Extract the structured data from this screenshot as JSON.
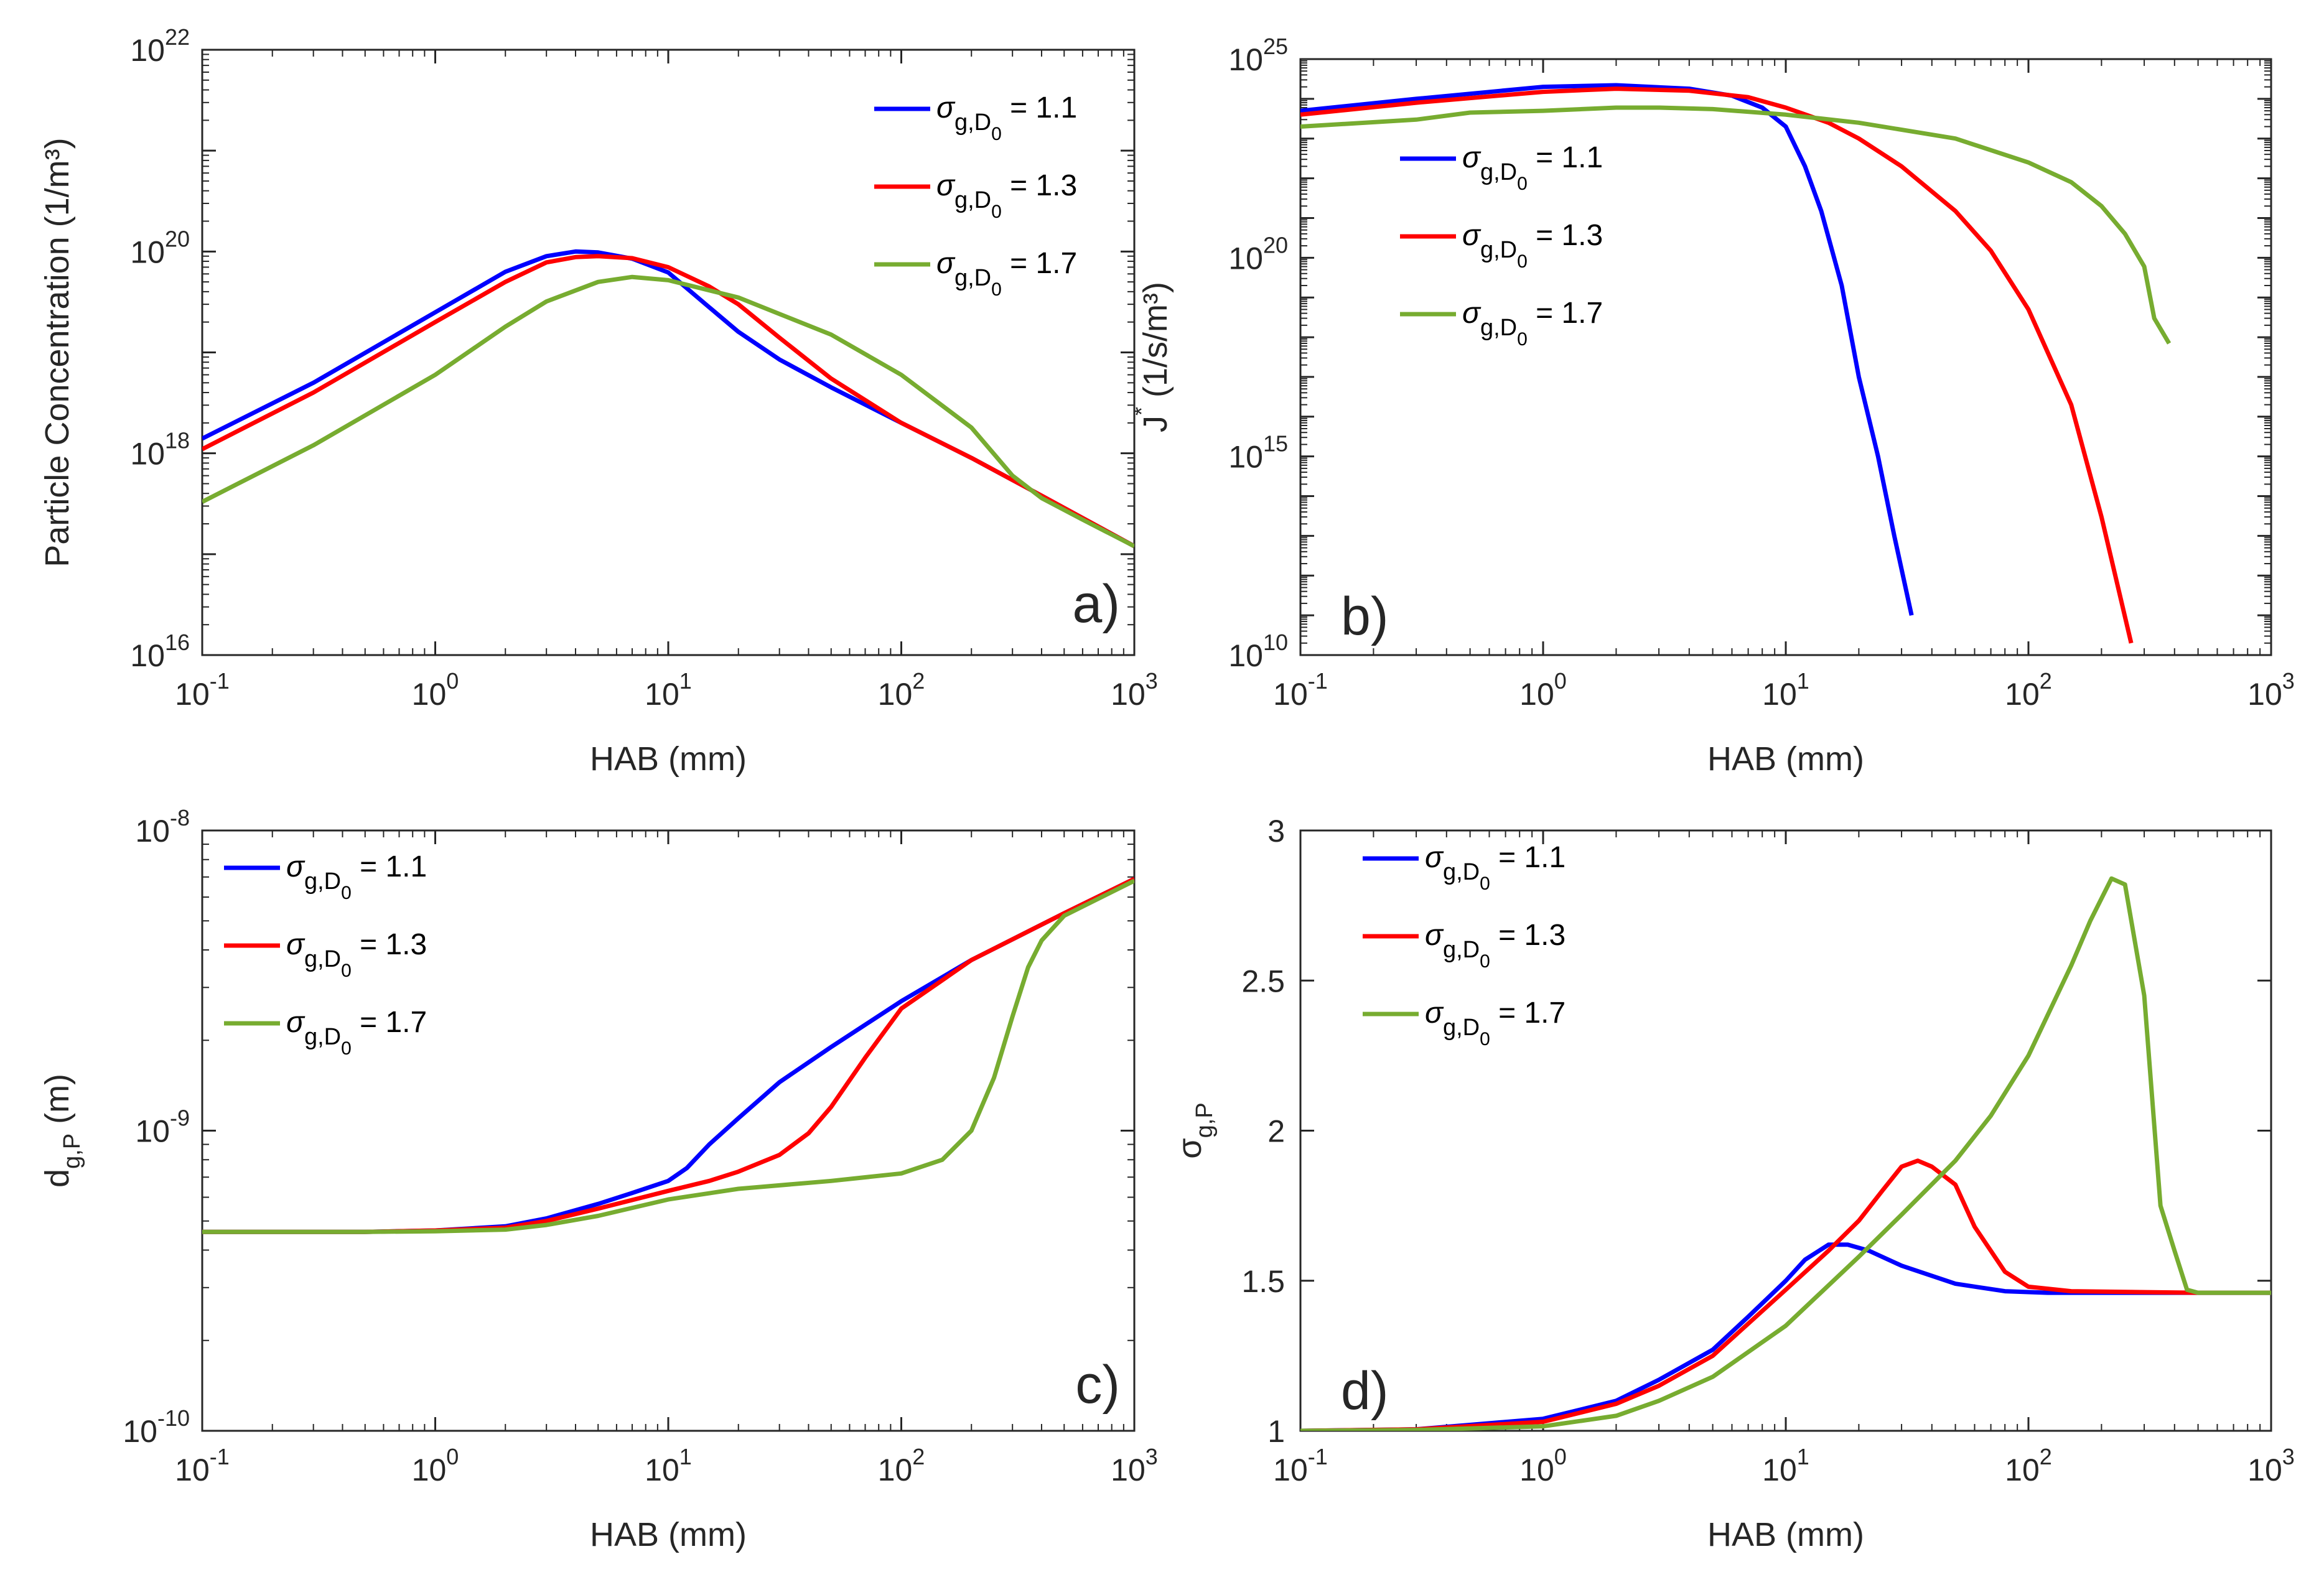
{
  "chart_data": [
    {
      "panel": "a)",
      "type": "line",
      "xscale": "log",
      "yscale": "log",
      "xlim": [
        0.1,
        1000
      ],
      "ylim": [
        1e+16,
        1e+22
      ],
      "xlabel": "HAB (mm)",
      "ylabel": "Particle Concentration (1/m³)",
      "xticks": [
        {
          "b": "10",
          "e": "-1"
        },
        {
          "b": "10",
          "e": "0"
        },
        {
          "b": "10",
          "e": "1"
        },
        {
          "b": "10",
          "e": "2"
        },
        {
          "b": "10",
          "e": "3"
        }
      ],
      "yticks": [
        {
          "v": 16,
          "b": "10",
          "e": "16"
        },
        {
          "v": 18,
          "b": "10",
          "e": "18"
        },
        {
          "v": 20,
          "b": "10",
          "e": "20"
        },
        {
          "v": 22,
          "b": "10",
          "e": "22"
        }
      ],
      "legend_position": "top-right",
      "series": [
        {
          "name": "σg,D0 = 1.1",
          "color": "#0000ff",
          "x": [
            0.1,
            0.3,
            1,
            2,
            3,
            4,
            5,
            7,
            10,
            15,
            20,
            30,
            50,
            100,
            200,
            400,
            1000
          ],
          "y": [
            1.4e+18,
            5e+18,
            2.5e+19,
            6.3e+19,
            9e+19,
            1e+20,
            9.8e+19,
            8.5e+19,
            6.2e+19,
            2.8e+19,
            1.6e+19,
            8.5e+18,
            4.5e+18,
            2e+18,
            9e+17,
            3.8e+17,
            1.2e+17
          ]
        },
        {
          "name": "σg,D0 = 1.3",
          "color": "#ff0000",
          "x": [
            0.1,
            0.3,
            1,
            2,
            3,
            4,
            5,
            7,
            10,
            15,
            20,
            30,
            50,
            100,
            200,
            400,
            1000
          ],
          "y": [
            1.1e+18,
            4e+18,
            2e+19,
            5e+19,
            7.8e+19,
            8.8e+19,
            9e+19,
            8.6e+19,
            7e+19,
            4.5e+19,
            3e+19,
            1.4e+19,
            5.5e+18,
            2e+18,
            9e+17,
            3.8e+17,
            1.2e+17
          ]
        },
        {
          "name": "σg,D0 = 1.7",
          "color": "#77ac30",
          "x": [
            0.1,
            0.3,
            1,
            2,
            3,
            5,
            7,
            10,
            20,
            50,
            100,
            200,
            300,
            400,
            600,
            1000
          ],
          "y": [
            3.3e+17,
            1.2e+18,
            6e+18,
            1.8e+19,
            3.2e+19,
            5e+19,
            5.6e+19,
            5.2e+19,
            3.5e+19,
            1.5e+19,
            6e+18,
            1.8e+18,
            6e+17,
            3.6e+17,
            2.2e+17,
            1.2e+17
          ]
        }
      ],
      "legend": [
        "= 1.1",
        "= 1.3",
        "= 1.7"
      ]
    },
    {
      "panel": "b)",
      "type": "line",
      "xscale": "log",
      "yscale": "log",
      "xlim": [
        0.1,
        1000
      ],
      "ylim": [
        10000000000.0,
        1e+25
      ],
      "xlabel": "HAB (mm)",
      "ylabel": "J* (1/s/m³)",
      "ylabel_parts": {
        "main": "J",
        "sup": "*",
        "rest": " (1/s/m³)"
      },
      "xticks": [
        {
          "b": "10",
          "e": "-1"
        },
        {
          "b": "10",
          "e": "0"
        },
        {
          "b": "10",
          "e": "1"
        },
        {
          "b": "10",
          "e": "2"
        },
        {
          "b": "10",
          "e": "3"
        }
      ],
      "yticks": [
        {
          "v": 10,
          "b": "10",
          "e": "10"
        },
        {
          "v": 15,
          "b": "10",
          "e": "15"
        },
        {
          "v": 20,
          "b": "10",
          "e": "20"
        },
        {
          "v": 25,
          "b": "10",
          "e": "25"
        }
      ],
      "legend_position": "top-left",
      "series": [
        {
          "name": "σg,D0 = 1.1",
          "color": "#0000ff",
          "x": [
            0.1,
            0.3,
            1,
            2,
            4,
            6,
            8,
            10,
            12,
            14,
            17,
            20,
            24,
            28,
            33
          ],
          "y": [
            5e+23,
            1e+24,
            2e+24,
            2.2e+24,
            1.8e+24,
            1.2e+24,
            6e+23,
            2e+23,
            2e+22,
            1.5e+21,
            2e+19,
            1e+17,
            1000000000000000.0,
            10000000000000.0,
            100000000000.0
          ]
        },
        {
          "name": "σg,D0 = 1.3",
          "color": "#ff0000",
          "x": [
            0.1,
            0.3,
            1,
            2,
            4,
            7,
            10,
            15,
            20,
            30,
            50,
            70,
            100,
            150,
            200,
            265
          ],
          "y": [
            4e+23,
            8e+23,
            1.5e+24,
            1.8e+24,
            1.6e+24,
            1.1e+24,
            6e+23,
            2.5e+23,
            1e+23,
            2e+22,
            1.5e+21,
            1.5e+20,
            5e+18,
            2e+16,
            30000000000000.0,
            20000000000.0
          ]
        },
        {
          "name": "σg,D0 = 1.7",
          "color": "#77ac30",
          "x": [
            0.1,
            0.3,
            0.5,
            1,
            2,
            3,
            5,
            10,
            20,
            50,
            100,
            150,
            200,
            250,
            300,
            330,
            380
          ],
          "y": [
            2e+23,
            3e+23,
            4.5e+23,
            5e+23,
            6e+23,
            6e+23,
            5.5e+23,
            4e+23,
            2.5e+23,
            1e+23,
            2.5e+22,
            8e+21,
            2e+21,
            4e+20,
            6e+19,
            3e+18,
            7e+17
          ]
        }
      ],
      "legend": [
        "= 1.1",
        "= 1.3",
        "= 1.7"
      ]
    },
    {
      "panel": "c)",
      "type": "line",
      "xscale": "log",
      "yscale": "log",
      "xlim": [
        0.1,
        1000
      ],
      "ylim": [
        1e-10,
        1e-08
      ],
      "xlabel": "HAB (mm)",
      "ylabel": "dg,P (m)",
      "ylabel_parts": {
        "main": "d",
        "sub": "g,P",
        "rest": " (m)"
      },
      "xticks": [
        {
          "b": "10",
          "e": "-1"
        },
        {
          "b": "10",
          "e": "0"
        },
        {
          "b": "10",
          "e": "1"
        },
        {
          "b": "10",
          "e": "2"
        },
        {
          "b": "10",
          "e": "3"
        }
      ],
      "yticks": [
        {
          "v": -10,
          "b": "10",
          "e": "-10"
        },
        {
          "v": -9,
          "b": "10",
          "e": "-9"
        },
        {
          "v": -8,
          "b": "10",
          "e": "-8"
        }
      ],
      "legend_position": "top-left",
      "series": [
        {
          "name": "σg,D0 = 1.1",
          "color": "#0000ff",
          "x": [
            0.1,
            0.5,
            1,
            2,
            3,
            5,
            7,
            10,
            12,
            15,
            20,
            30,
            50,
            100,
            200,
            500,
            1000
          ],
          "y": [
            4.6e-10,
            4.6e-10,
            4.65e-10,
            4.8e-10,
            5.1e-10,
            5.7e-10,
            6.2e-10,
            6.8e-10,
            7.5e-10,
            9e-10,
            1.1e-09,
            1.45e-09,
            1.9e-09,
            2.7e-09,
            3.7e-09,
            5.3e-09,
            6.9e-09
          ]
        },
        {
          "name": "σg,D0 = 1.3",
          "color": "#ff0000",
          "x": [
            0.1,
            0.5,
            1,
            2,
            3,
            5,
            10,
            15,
            20,
            30,
            40,
            50,
            70,
            100,
            200,
            500,
            1000
          ],
          "y": [
            4.6e-10,
            4.6e-10,
            4.65e-10,
            4.75e-10,
            5e-10,
            5.5e-10,
            6.3e-10,
            6.8e-10,
            7.3e-10,
            8.3e-10,
            9.8e-10,
            1.2e-09,
            1.75e-09,
            2.55e-09,
            3.7e-09,
            5.3e-09,
            6.9e-09
          ]
        },
        {
          "name": "σg,D0 = 1.7",
          "color": "#77ac30",
          "x": [
            0.1,
            0.5,
            1,
            2,
            3,
            5,
            10,
            20,
            50,
            100,
            150,
            200,
            250,
            300,
            350,
            400,
            500,
            1000
          ],
          "y": [
            4.6e-10,
            4.6e-10,
            4.62e-10,
            4.68e-10,
            4.85e-10,
            5.2e-10,
            5.9e-10,
            6.4e-10,
            6.8e-10,
            7.2e-10,
            8e-10,
            1e-09,
            1.5e-09,
            2.4e-09,
            3.5e-09,
            4.3e-09,
            5.2e-09,
            6.8e-09
          ]
        }
      ],
      "legend": [
        "= 1.1",
        "= 1.3",
        "= 1.7"
      ]
    },
    {
      "panel": "d)",
      "type": "line",
      "xscale": "log",
      "yscale": "linear",
      "xlim": [
        0.1,
        1000
      ],
      "ylim": [
        1,
        3
      ],
      "xlabel": "HAB (mm)",
      "ylabel": "σg,P",
      "ylabel_parts": {
        "main": "σ",
        "sub": "g,P",
        "rest": ""
      },
      "xticks": [
        {
          "b": "10",
          "e": "-1"
        },
        {
          "b": "10",
          "e": "0"
        },
        {
          "b": "10",
          "e": "1"
        },
        {
          "b": "10",
          "e": "2"
        },
        {
          "b": "10",
          "e": "3"
        }
      ],
      "yticks": [
        {
          "v": 1,
          "t": "1"
        },
        {
          "v": 1.5,
          "t": "1.5"
        },
        {
          "v": 2,
          "t": "2"
        },
        {
          "v": 2.5,
          "t": "2.5"
        },
        {
          "v": 3,
          "t": "3"
        }
      ],
      "legend_position": "top-left",
      "series": [
        {
          "name": "σg,D0 = 1.1",
          "color": "#0000ff",
          "x": [
            0.1,
            0.3,
            1,
            2,
            3,
            5,
            7,
            10,
            12,
            15,
            18,
            22,
            30,
            50,
            80,
            120,
            200,
            500,
            1000
          ],
          "y": [
            1.0,
            1.005,
            1.04,
            1.1,
            1.17,
            1.27,
            1.38,
            1.5,
            1.57,
            1.62,
            1.62,
            1.6,
            1.55,
            1.49,
            1.465,
            1.46,
            1.46,
            1.46,
            1.46
          ]
        },
        {
          "name": "σg,D0 = 1.3",
          "color": "#ff0000",
          "x": [
            0.1,
            0.3,
            1,
            2,
            3,
            5,
            10,
            15,
            20,
            25,
            30,
            35,
            40,
            50,
            60,
            80,
            100,
            150,
            500,
            1000
          ],
          "y": [
            1.0,
            1.005,
            1.03,
            1.09,
            1.15,
            1.25,
            1.47,
            1.6,
            1.7,
            1.8,
            1.88,
            1.9,
            1.88,
            1.82,
            1.68,
            1.53,
            1.48,
            1.465,
            1.46,
            1.46
          ]
        },
        {
          "name": "σg,D0 = 1.7",
          "color": "#77ac30",
          "x": [
            0.1,
            0.3,
            1,
            2,
            3,
            5,
            10,
            20,
            30,
            50,
            70,
            100,
            150,
            180,
            220,
            250,
            300,
            350,
            400,
            450,
            500,
            1000
          ],
          "y": [
            1.0,
            1.003,
            1.015,
            1.05,
            1.1,
            1.18,
            1.35,
            1.58,
            1.72,
            1.9,
            2.05,
            2.25,
            2.55,
            2.7,
            2.84,
            2.82,
            2.45,
            1.75,
            1.6,
            1.47,
            1.46,
            1.46
          ]
        }
      ],
      "legend": [
        "= 1.1",
        "= 1.3",
        "= 1.7"
      ]
    }
  ],
  "legend_symbol": {
    "sigma": "σ",
    "sub": "g,D",
    "subsub": "0"
  },
  "tick_style": {
    "minor_ticks": true
  }
}
